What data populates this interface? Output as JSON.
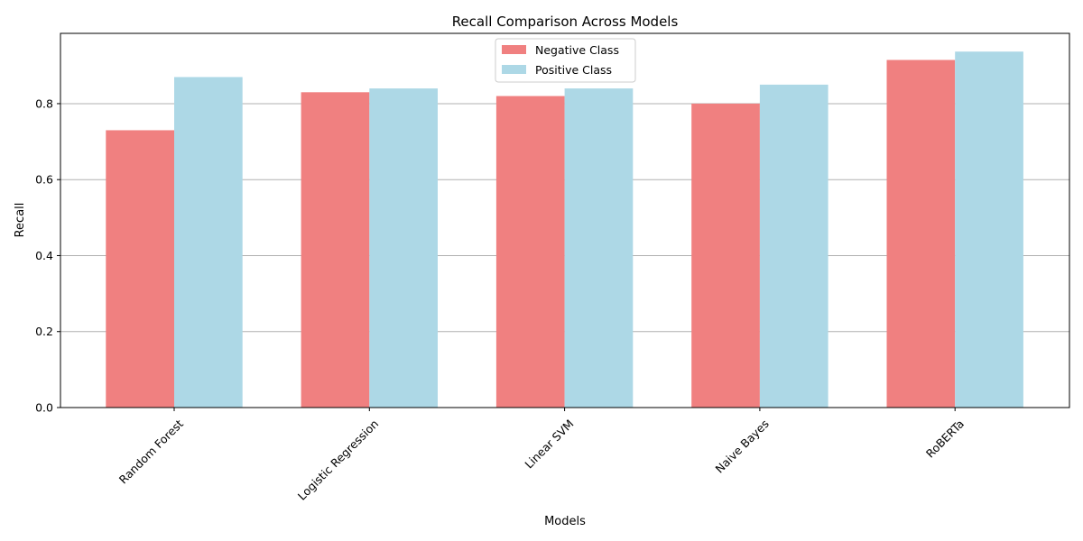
{
  "chart_data": {
    "type": "bar",
    "title": "Recall Comparison Across Models",
    "xlabel": "Models",
    "ylabel": "Recall",
    "categories": [
      "Random Forest",
      "Logistic Regression",
      "Linear SVM",
      "Naive Bayes",
      "RoBERTa"
    ],
    "series": [
      {
        "name": "Negative Class",
        "color": "#f08080",
        "values": [
          0.73,
          0.83,
          0.82,
          0.8,
          0.915
        ]
      },
      {
        "name": "Positive Class",
        "color": "#add8e6",
        "values": [
          0.87,
          0.84,
          0.84,
          0.85,
          0.937
        ]
      }
    ],
    "ylim": [
      0,
      0.985
    ],
    "yticks": [
      0.0,
      0.2,
      0.4,
      0.6,
      0.8
    ],
    "ytick_labels": [
      "0.0",
      "0.2",
      "0.4",
      "0.6",
      "0.8"
    ],
    "grid": "y",
    "grid_color": "#b0b0b0",
    "legend_position": "top-center"
  }
}
